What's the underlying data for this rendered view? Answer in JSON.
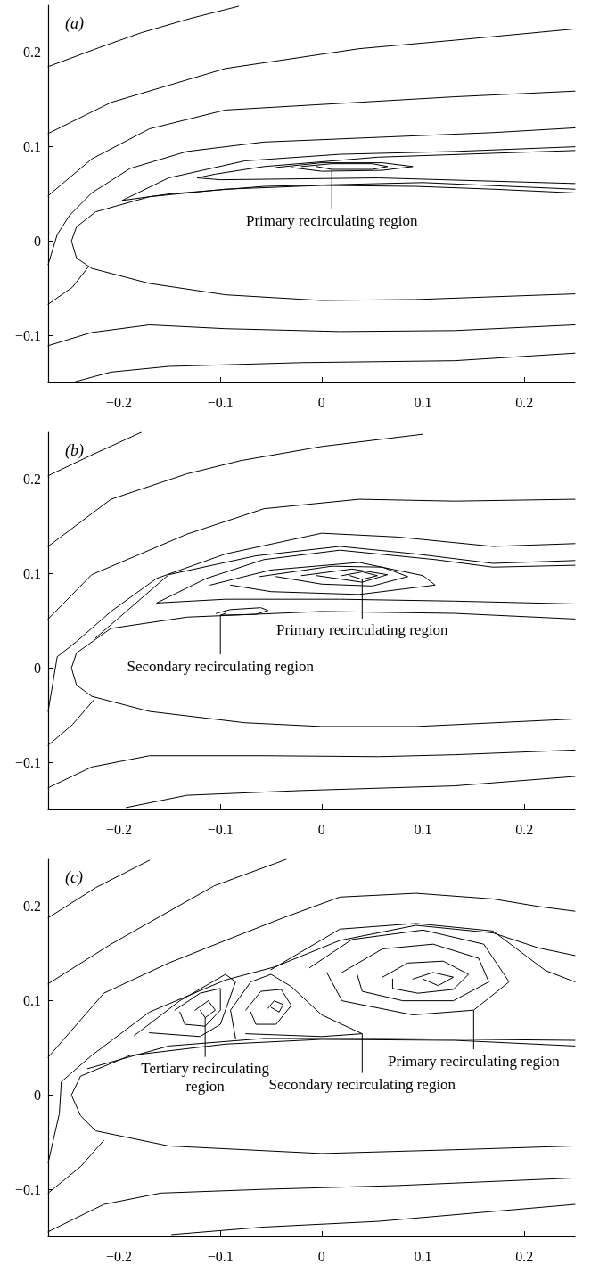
{
  "chart_data": [
    {
      "type": "line",
      "title": "(a)",
      "marker": "none",
      "line_style": "solid",
      "xlim": [
        -0.27,
        0.25
      ],
      "ylim": [
        -0.15,
        0.25
      ],
      "xticks": [
        -0.2,
        -0.1,
        0,
        0.1,
        0.2
      ],
      "yticks": [
        -0.1,
        0,
        0.1,
        0.2
      ],
      "annotations": [
        {
          "text": "Primary recirculating region",
          "x": 0.01,
          "y": 0.076
        }
      ],
      "series": [
        {
          "color": "#000000",
          "x": [
            -0.27,
            -0.22,
            -0.178,
            -0.13,
            -0.082
          ],
          "values": [
            0.185,
            0.205,
            0.221,
            0.236,
            0.249
          ]
        },
        {
          "color": "#000000",
          "x": [
            -0.27,
            -0.208,
            -0.095,
            0.037,
            0.131,
            0.25
          ],
          "values": [
            0.114,
            0.147,
            0.183,
            0.204,
            0.213,
            0.225
          ]
        },
        {
          "color": "#000000",
          "x": [
            -0.27,
            -0.227,
            -0.17,
            -0.095,
            0.018,
            0.131,
            0.25
          ],
          "values": [
            0.048,
            0.087,
            0.119,
            0.139,
            0.146,
            0.153,
            0.159
          ]
        },
        {
          "color": "#000000",
          "x": [
            -0.27,
            -0.261,
            -0.249,
            -0.227,
            -0.189,
            -0.133,
            -0.057,
            0.056,
            0.169,
            0.25
          ],
          "values": [
            -0.025,
            0.007,
            0.027,
            0.051,
            0.077,
            0.095,
            0.105,
            0.11,
            0.115,
            0.12
          ]
        },
        {
          "color": "#000000",
          "x": [
            -0.27,
            -0.246,
            -0.23
          ],
          "values": [
            -0.067,
            -0.049,
            -0.027
          ]
        },
        {
          "color": "#000000",
          "x": [
            0.25,
            0.169,
            0.093,
            0,
            -0.095,
            -0.17,
            -0.223,
            -0.242,
            -0.247,
            -0.242,
            -0.227,
            -0.17,
            -0.095,
            0,
            0.093,
            0.25
          ],
          "values": [
            0.051,
            0.055,
            0.058,
            0.059,
            0.055,
            0.047,
            0.031,
            0.015,
            0,
            -0.018,
            -0.029,
            -0.045,
            -0.057,
            -0.063,
            -0.062,
            -0.056
          ]
        },
        {
          "color": "#000000",
          "x": [
            0.25,
            0.131,
            0.018,
            -0.076,
            -0.151,
            -0.197,
            -0.15,
            -0.057,
            0.1,
            0.25
          ],
          "values": [
            0.1,
            0.095,
            0.092,
            0.085,
            0.067,
            0.043,
            0.05,
            0.058,
            0.062,
            0.055
          ]
        },
        {
          "color": "#000000",
          "x": [
            0.25,
            0.056,
            -0.057,
            -0.105,
            -0.123,
            -0.1,
            0.056,
            0.25
          ],
          "values": [
            0.096,
            0.089,
            0.079,
            0.071,
            0.067,
            0.065,
            0.067,
            0.061
          ]
        },
        {
          "color": "#000000",
          "x": [
            -0.045,
            0,
            0.06,
            0.09,
            0.06,
            0,
            -0.03
          ],
          "values": [
            0.078,
            0.083,
            0.083,
            0.079,
            0.075,
            0.074,
            0.078
          ]
        },
        {
          "color": "#000000",
          "x": [
            -0.02,
            0.01,
            0.05,
            0.065,
            0.05,
            0.01,
            -0.005
          ],
          "values": [
            0.079,
            0.082,
            0.082,
            0.079,
            0.076,
            0.076,
            0.079
          ]
        },
        {
          "color": "#000000",
          "x": [
            -0.27,
            -0.227,
            -0.17,
            -0.095,
            0.018,
            0.131,
            0.25
          ],
          "values": [
            -0.111,
            -0.097,
            -0.089,
            -0.093,
            -0.096,
            -0.095,
            -0.089
          ]
        },
        {
          "color": "#000000",
          "x": [
            -0.246,
            -0.208,
            -0.151,
            -0.02,
            0.131,
            0.25
          ],
          "values": [
            -0.15,
            -0.139,
            -0.133,
            -0.129,
            -0.127,
            -0.119
          ]
        }
      ]
    },
    {
      "type": "line",
      "title": "(b)",
      "marker": "none",
      "line_style": "solid",
      "xlim": [
        -0.27,
        0.25
      ],
      "ylim": [
        -0.15,
        0.25
      ],
      "xticks": [
        -0.2,
        -0.1,
        0,
        0.1,
        0.2
      ],
      "yticks": [
        -0.1,
        0,
        0.1,
        0.2
      ],
      "annotations": [
        {
          "text": "Primary recirculating region",
          "x": 0.04,
          "y": 0.094
        },
        {
          "text": "Secondary recirculating region",
          "x": -0.1,
          "y": 0.056
        }
      ],
      "series": [
        {
          "color": "#000000",
          "x": [
            -0.27,
            -0.227,
            -0.178
          ],
          "values": [
            0.204,
            0.226,
            0.25
          ]
        },
        {
          "color": "#000000",
          "x": [
            -0.27,
            -0.208,
            -0.133,
            -0.08,
            0,
            0.1
          ],
          "values": [
            0.129,
            0.179,
            0.206,
            0.22,
            0.235,
            0.248
          ]
        },
        {
          "color": "#000000",
          "x": [
            -0.27,
            -0.227,
            -0.133,
            -0.057,
            0.037,
            0.131,
            0.25
          ],
          "values": [
            0.052,
            0.099,
            0.142,
            0.169,
            0.179,
            0.177,
            0.179
          ]
        },
        {
          "color": "#000000",
          "x": [
            -0.27,
            -0.261,
            -0.242,
            -0.208,
            -0.163,
            -0.095,
            0,
            0.075,
            0.169,
            0.25
          ],
          "values": [
            -0.046,
            0.012,
            0.028,
            0.06,
            0.095,
            0.121,
            0.143,
            0.139,
            0.129,
            0.132
          ]
        },
        {
          "color": "#000000",
          "x": [
            -0.223,
            -0.151,
            -0.065,
            0.018,
            0.093,
            0.169,
            0.25
          ],
          "values": [
            0.032,
            0.099,
            0.119,
            0.129,
            0.121,
            0.111,
            0.114
          ]
        },
        {
          "color": "#000000",
          "x": [
            0.25,
            0.169,
            0.112,
            0.018,
            -0.057,
            -0.114,
            -0.163,
            -0.095,
            0.018,
            0.131,
            0.25
          ],
          "values": [
            0.109,
            0.107,
            0.115,
            0.125,
            0.115,
            0.095,
            0.069,
            0.073,
            0.073,
            0.071,
            0.068
          ]
        },
        {
          "color": "#000000",
          "x": [
            -0.11,
            -0.05,
            0.037,
            0.1,
            0.112,
            0.037,
            -0.05,
            -0.09
          ],
          "values": [
            0.088,
            0.104,
            0.112,
            0.098,
            0.088,
            0.078,
            0.081,
            0.088
          ]
        },
        {
          "color": "#000000",
          "x": [
            -0.061,
            0.01,
            0.06,
            0.085,
            0.05,
            0,
            -0.045
          ],
          "values": [
            0.097,
            0.108,
            0.107,
            0.097,
            0.087,
            0.089,
            0.097
          ]
        },
        {
          "color": "#000000",
          "x": [
            -0.02,
            0.03,
            0.065,
            0.04,
            -0.005
          ],
          "values": [
            0.098,
            0.105,
            0.099,
            0.091,
            0.098
          ]
        },
        {
          "color": "#000000",
          "x": [
            0.02,
            0.04,
            0.055,
            0.04,
            0.028
          ],
          "values": [
            0.098,
            0.102,
            0.098,
            0.094,
            0.098
          ]
        },
        {
          "color": "#000000",
          "x": [
            -0.104,
            -0.09,
            -0.06,
            -0.053,
            -0.065,
            -0.1,
            -0.095
          ],
          "values": [
            0.058,
            0.062,
            0.064,
            0.061,
            0.057,
            0.056,
            0.058
          ]
        },
        {
          "color": "#000000",
          "x": [
            0.25,
            0.131,
            0,
            -0.133,
            -0.208,
            -0.242,
            -0.247,
            -0.242,
            -0.227,
            -0.17,
            -0.076,
            0,
            0.093,
            0.25
          ],
          "values": [
            0.052,
            0.058,
            0.06,
            0.054,
            0.042,
            0.016,
            0,
            -0.018,
            -0.03,
            -0.046,
            -0.058,
            -0.062,
            -0.062,
            -0.054
          ]
        },
        {
          "color": "#000000",
          "x": [
            -0.27,
            -0.246,
            -0.225
          ],
          "values": [
            -0.082,
            -0.06,
            -0.034
          ]
        },
        {
          "color": "#000000",
          "x": [
            -0.27,
            -0.227,
            -0.17,
            -0.057,
            0.056,
            0.131,
            0.25
          ],
          "values": [
            -0.127,
            -0.105,
            -0.093,
            -0.093,
            -0.094,
            -0.092,
            -0.087
          ]
        },
        {
          "color": "#000000",
          "x": [
            -0.193,
            -0.133,
            -0.02,
            0.131,
            0.25
          ],
          "values": [
            -0.148,
            -0.135,
            -0.13,
            -0.125,
            -0.115
          ]
        }
      ]
    },
    {
      "type": "line",
      "title": "(c)",
      "marker": "none",
      "line_style": "solid",
      "xlim": [
        -0.27,
        0.25
      ],
      "ylim": [
        -0.15,
        0.25
      ],
      "xticks": [
        -0.2,
        -0.1,
        0,
        0.1,
        0.2
      ],
      "yticks": [
        -0.1,
        0,
        0.1,
        0.2
      ],
      "annotations": [
        {
          "text": "Tertiary recirculating\nregion",
          "x": -0.115,
          "y": 0.082
        },
        {
          "text": "Secondary recirculating region",
          "x": 0.04,
          "y": 0.065
        },
        {
          "text": "Primary recirculating region",
          "x": 0.15,
          "y": 0.09
        }
      ],
      "series": [
        {
          "color": "#000000",
          "x": [
            -0.27,
            -0.223,
            -0.17
          ],
          "values": [
            0.188,
            0.22,
            0.249
          ]
        },
        {
          "color": "#000000",
          "x": [
            -0.27,
            -0.208,
            -0.106,
            -0.035
          ],
          "values": [
            0.118,
            0.16,
            0.222,
            0.25
          ]
        },
        {
          "color": "#000000",
          "x": [
            -0.27,
            -0.215,
            -0.151,
            -0.095,
            -0.038,
            0.018,
            0.093,
            0.169,
            0.214,
            0.25
          ],
          "values": [
            0.04,
            0.108,
            0.14,
            0.164,
            0.188,
            0.21,
            0.214,
            0.208,
            0.2,
            0.195
          ]
        },
        {
          "color": "#000000",
          "x": [
            -0.27,
            -0.259,
            -0.257,
            -0.227,
            -0.17,
            -0.095,
            -0.046,
            0.018,
            0.093,
            0.169,
            0.214,
            0.25
          ],
          "values": [
            -0.072,
            -0.02,
            0.014,
            0.042,
            0.088,
            0.122,
            0.136,
            0.164,
            0.18,
            0.172,
            0.156,
            0.148
          ]
        },
        {
          "color": "#000000",
          "x": [
            -0.05,
            0.018,
            0.093,
            0.169,
            0.221,
            0.25
          ],
          "values": [
            0.133,
            0.176,
            0.182,
            0.174,
            0.132,
            0.12
          ]
        },
        {
          "color": "#000000",
          "x": [
            -0.231,
            -0.151,
            -0.057,
            0.056,
            0.25
          ],
          "values": [
            0.028,
            0.052,
            0.06,
            0.06,
            0.058
          ]
        },
        {
          "color": "#000000",
          "x": [
            0.25,
            0.131,
            0,
            -0.095,
            -0.189,
            -0.238,
            -0.247,
            -0.238,
            -0.223,
            -0.151,
            0,
            0.131,
            0.25
          ],
          "values": [
            0.052,
            0.058,
            0.059,
            0.054,
            0.042,
            0.02,
            0,
            -0.022,
            -0.038,
            -0.054,
            -0.062,
            -0.058,
            -0.054
          ]
        },
        {
          "color": "#000000",
          "x": [
            -0.012,
            0.03,
            0.1,
            0.16,
            0.185,
            0.15,
            0.09,
            0.02,
            0.005
          ],
          "values": [
            0.135,
            0.165,
            0.175,
            0.16,
            0.12,
            0.09,
            0.085,
            0.1,
            0.13
          ]
        },
        {
          "color": "#000000",
          "x": [
            0.02,
            0.06,
            0.11,
            0.155,
            0.165,
            0.13,
            0.08,
            0.04,
            0.035
          ],
          "values": [
            0.13,
            0.155,
            0.16,
            0.145,
            0.12,
            0.1,
            0.1,
            0.11,
            0.128
          ]
        },
        {
          "color": "#000000",
          "x": [
            0.06,
            0.085,
            0.12,
            0.145,
            0.13,
            0.095,
            0.07,
            0.07
          ],
          "values": [
            0.125,
            0.14,
            0.142,
            0.128,
            0.112,
            0.108,
            0.113,
            0.123
          ]
        },
        {
          "color": "#000000",
          "x": [
            0.09,
            0.11,
            0.13,
            0.115,
            0.1
          ],
          "values": [
            0.123,
            0.13,
            0.125,
            0.116,
            0.123
          ]
        },
        {
          "color": "#000000",
          "x": [
            -0.085,
            -0.09,
            -0.07,
            -0.05,
            -0.03,
            0,
            0.04,
            0,
            -0.075
          ],
          "values": [
            0.06,
            0.09,
            0.12,
            0.128,
            0.115,
            0.085,
            0.065,
            0.062,
            0.065
          ]
        },
        {
          "color": "#000000",
          "x": [
            -0.075,
            -0.06,
            -0.04,
            -0.03,
            -0.045,
            -0.065,
            -0.07
          ],
          "values": [
            0.09,
            0.11,
            0.112,
            0.095,
            0.075,
            0.075,
            0.088
          ]
        },
        {
          "color": "#000000",
          "x": [
            -0.053,
            -0.047,
            -0.038,
            -0.042,
            -0.05
          ],
          "values": [
            0.092,
            0.1,
            0.096,
            0.088,
            0.093
          ]
        },
        {
          "color": "#000000",
          "x": [
            -0.185,
            -0.14,
            -0.095,
            -0.085,
            -0.1,
            -0.12,
            -0.17
          ],
          "values": [
            0.063,
            0.1,
            0.128,
            0.12,
            0.075,
            0.062,
            0.066
          ]
        },
        {
          "color": "#000000",
          "x": [
            -0.145,
            -0.12,
            -0.1,
            -0.1,
            -0.115,
            -0.135,
            -0.14
          ],
          "values": [
            0.09,
            0.108,
            0.113,
            0.09,
            0.073,
            0.075,
            0.088
          ]
        },
        {
          "color": "#000000",
          "x": [
            -0.125,
            -0.112,
            -0.105,
            -0.115,
            -0.12
          ],
          "values": [
            0.09,
            0.1,
            0.09,
            0.082,
            0.09
          ]
        },
        {
          "color": "#000000",
          "x": [
            -0.27,
            -0.238,
            -0.215
          ],
          "values": [
            -0.104,
            -0.076,
            -0.048
          ]
        },
        {
          "color": "#000000",
          "x": [
            -0.27,
            -0.215,
            -0.159,
            -0.057,
            0.075,
            0.25
          ],
          "values": [
            -0.145,
            -0.116,
            -0.104,
            -0.1,
            -0.096,
            -0.088
          ]
        },
        {
          "color": "#000000",
          "x": [
            -0.148,
            -0.057,
            0.056,
            0.25
          ],
          "values": [
            -0.148,
            -0.14,
            -0.134,
            -0.116
          ]
        }
      ]
    }
  ]
}
